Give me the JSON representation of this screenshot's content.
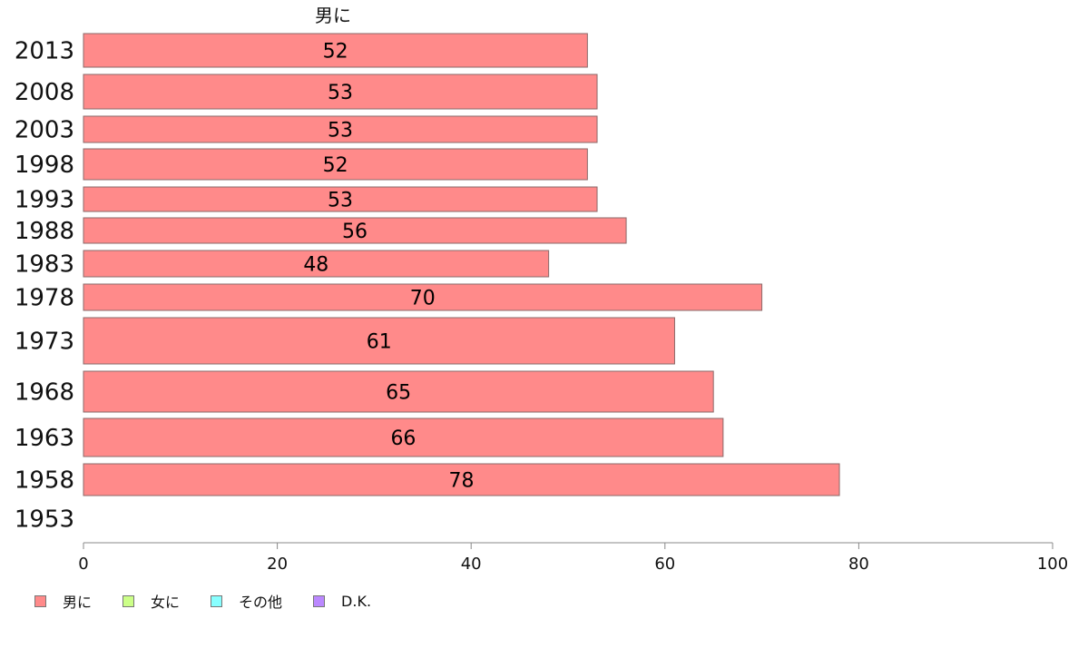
{
  "chart_data": {
    "type": "bar",
    "orientation": "horizontal",
    "title": "",
    "series_header": "男に",
    "categories": [
      "2013",
      "2008",
      "2003",
      "1998",
      "1993",
      "1988",
      "1983",
      "1978",
      "1973",
      "1968",
      "1963",
      "1958",
      "1953"
    ],
    "series": [
      {
        "name": "男に",
        "color": "#ff8a8a",
        "values": [
          52,
          53,
          53,
          52,
          53,
          56,
          48,
          70,
          61,
          65,
          66,
          78,
          null
        ]
      }
    ],
    "xlim": [
      0,
      100
    ],
    "xticks": [
      "0",
      "20",
      "40",
      "60",
      "80",
      "100"
    ],
    "grid": false,
    "legend_position": "bottom-left",
    "legend": [
      {
        "label": "男に",
        "color": "#ff8a8a"
      },
      {
        "label": "女に",
        "color": "#ccff88"
      },
      {
        "label": "その他",
        "color": "#88ffff"
      },
      {
        "label": "D.K.",
        "color": "#bb88ff"
      }
    ]
  }
}
